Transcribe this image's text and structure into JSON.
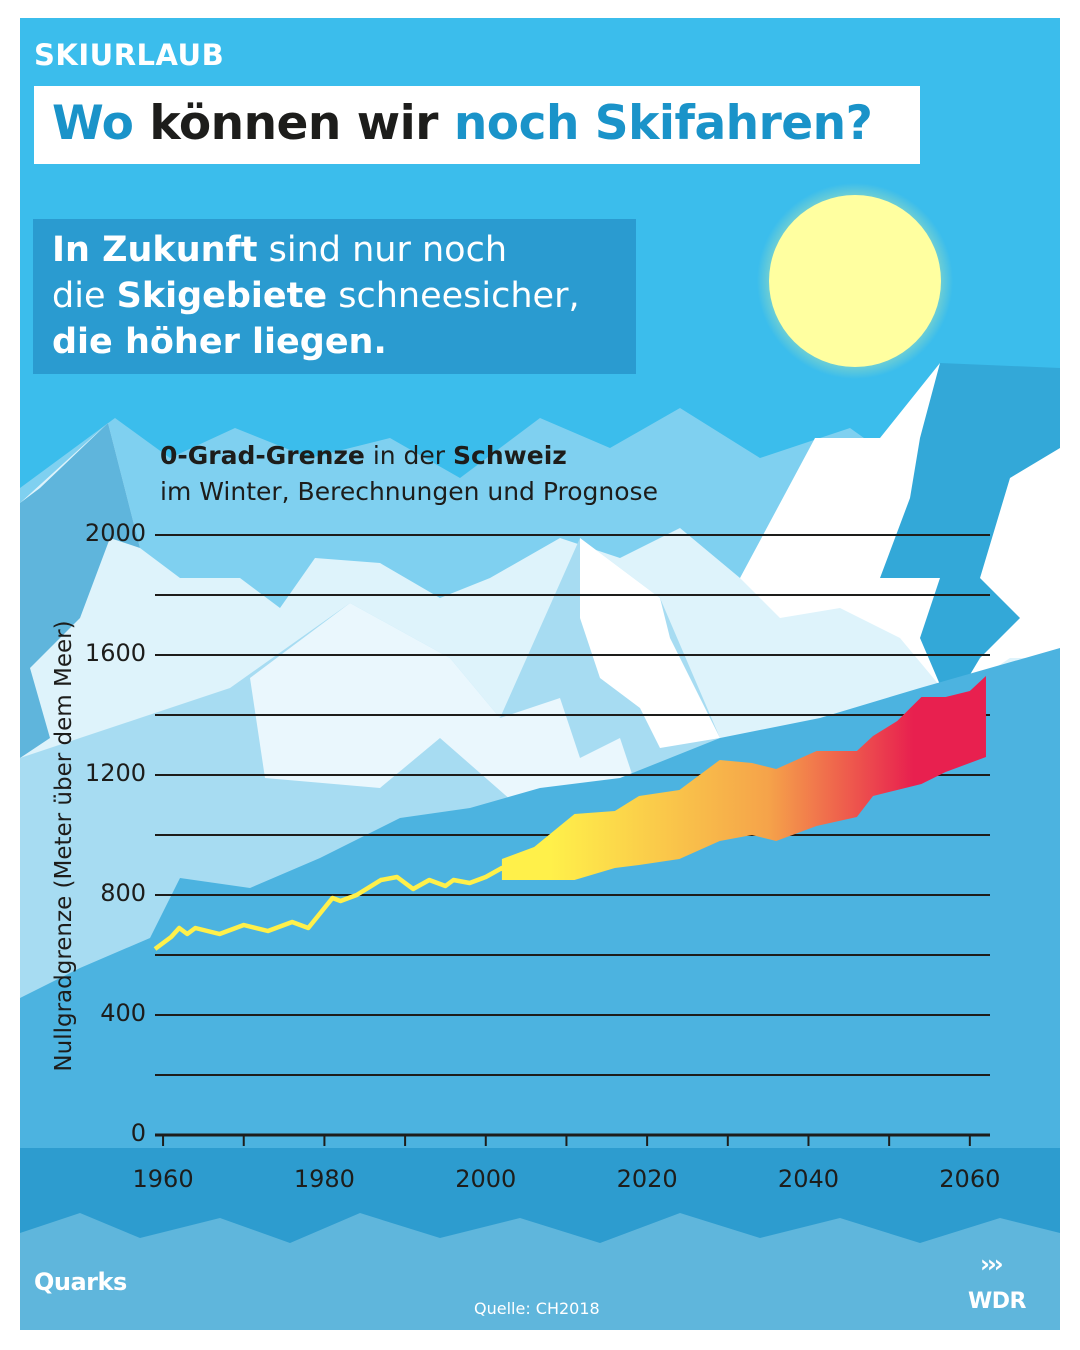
{
  "header": {
    "overline": "SKIURLAUB",
    "title_part1": "Wo",
    "title_part2": "können wir",
    "title_part3": "noch Skifahren?"
  },
  "intro": {
    "line1_bold": "In Zukunft",
    "line1_rest": " sind nur noch",
    "line2_start": "die ",
    "line2_bold": "Skigebiete",
    "line2_rest": " schneesicher,",
    "line3_bold": "die höher liegen."
  },
  "chart_data": {
    "type": "area",
    "title_bold1": "0-Grad-Grenze",
    "title_mid": " in der ",
    "title_bold2": "Schweiz",
    "subtitle": "im Winter, Berechnungen und Prognose",
    "ylabel": "Nullgradgrenze (Meter über dem Meer)",
    "ylim": [
      0,
      2000
    ],
    "xlim": [
      1959,
      2062
    ],
    "grid": true,
    "y_ticks": [
      0,
      400,
      800,
      1200,
      1600,
      2000
    ],
    "x_ticks": [
      1960,
      1980,
      2000,
      2020,
      2040,
      2060
    ],
    "series": [
      {
        "kind": "measured",
        "x": [
          1959,
          1961,
          1962,
          1963,
          1964,
          1967,
          1970,
          1973,
          1976,
          1978,
          1981,
          1982,
          1984,
          1987,
          1989,
          1991,
          1993,
          1995,
          1996,
          1998,
          2000,
          2002,
          2004
        ],
        "y": [
          620,
          660,
          690,
          670,
          690,
          670,
          700,
          680,
          710,
          690,
          790,
          780,
          800,
          850,
          860,
          820,
          850,
          830,
          850,
          840,
          860,
          890,
          860
        ]
      },
      {
        "kind": "projection",
        "x": [
          2002,
          2006,
          2011,
          2016,
          2019,
          2024,
          2029,
          2033,
          2036,
          2041,
          2046,
          2048,
          2051,
          2054,
          2057,
          2060,
          2062
        ],
        "upper": [
          920,
          960,
          1070,
          1080,
          1130,
          1150,
          1250,
          1240,
          1220,
          1280,
          1280,
          1330,
          1380,
          1460,
          1460,
          1480,
          1530
        ],
        "lower": [
          850,
          850,
          850,
          890,
          900,
          920,
          980,
          1000,
          980,
          1030,
          1060,
          1130,
          1150,
          1170,
          1210,
          1240,
          1260
        ]
      }
    ],
    "colors": {
      "measured": "#fff04a",
      "projection_start": "#fff04a",
      "projection_mid": "#f5a34a",
      "projection_end": "#e8204f"
    }
  },
  "footer": {
    "brand_left": "Quarks",
    "source": "Quelle: CH2018",
    "brand_right": "WDR",
    "brand_right_mark": "›››"
  },
  "colors": {
    "sky": "#3bbdec",
    "accent_title": "#1a93c9",
    "intro_box": "#2a9bd0",
    "sun": "#ffffa0",
    "grid": "#1d1d1b"
  }
}
